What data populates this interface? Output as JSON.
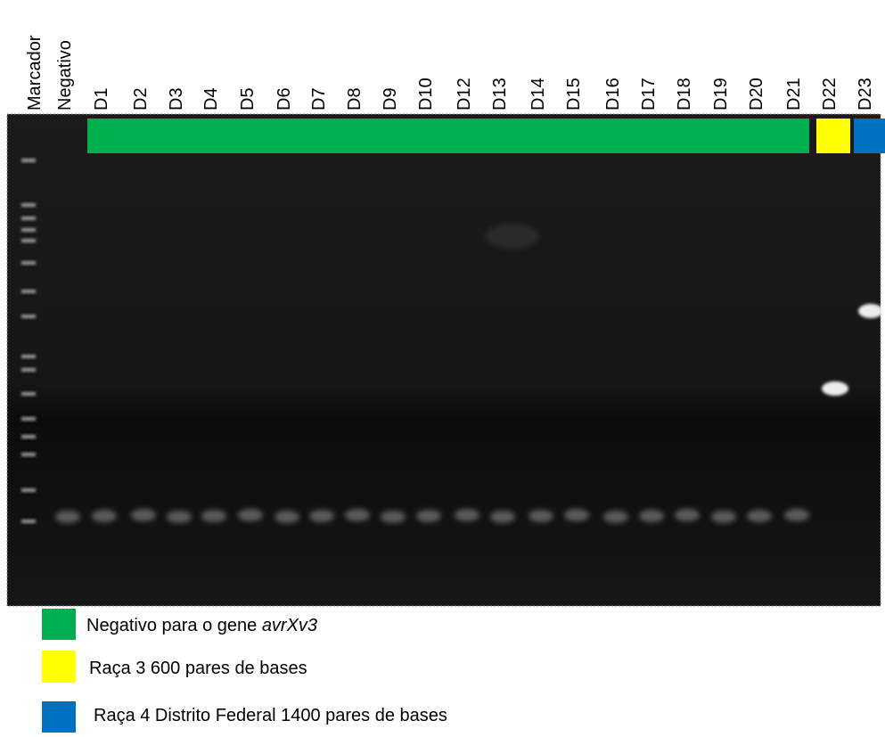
{
  "lanes": [
    "Marcador",
    "Negativo",
    "D1",
    "D2",
    "D3",
    "D4",
    "D5",
    "D6",
    "D7",
    "D8",
    "D9",
    "D10",
    "D12",
    "D13",
    "D14",
    "D15",
    "D16",
    "D17",
    "D18",
    "D19",
    "D20",
    "D21",
    "D22",
    "D23"
  ],
  "legend": [
    {
      "text": "Negativo para o gene",
      "italic": "avrXv3",
      "color": "#00b050"
    },
    {
      "text": "Raça 3 600 pares de bases",
      "color": "#ffff00"
    },
    {
      "text": "Raça 4 Distrito Federal 1400 pares de bases",
      "color": "#0070c0"
    }
  ]
}
